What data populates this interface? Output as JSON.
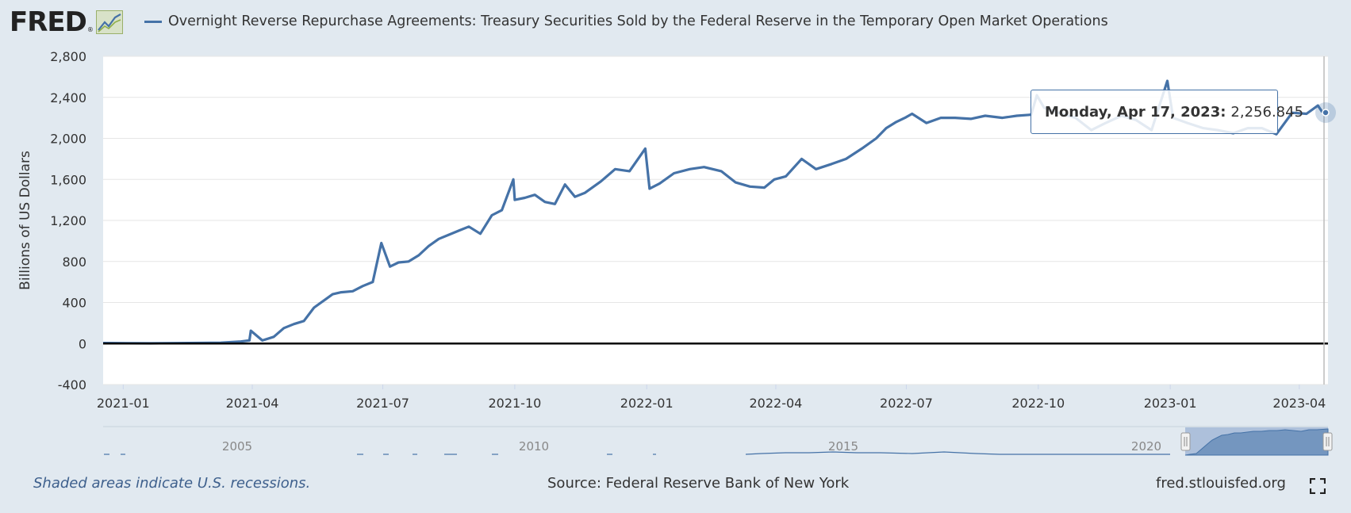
{
  "header": {
    "logo_text": "FRED",
    "logo_reg": "®",
    "logo_icon": "chart-line-icon",
    "title": "Overnight Reverse Repurchase Agreements: Treasury Securities Sold by the Federal Reserve in the Temporary Open Market Operations"
  },
  "tooltip": {
    "date": "Monday, Apr 17, 2023:",
    "value": "2,256.845"
  },
  "navigator": {
    "year_labels": [
      "2005",
      "2010",
      "2015",
      "2020"
    ]
  },
  "footer": {
    "recession_note": "Shaded areas indicate U.S. recessions.",
    "source": "Source: Federal Reserve Bank of New York",
    "url": "fred.stlouisfed.org",
    "fullscreen_icon": "fullscreen-icon"
  },
  "colors": {
    "series": "#4572a7",
    "background": "#e1e9f0",
    "plot_background": "#ffffff",
    "zero_line": "#000000"
  },
  "chart_data": {
    "type": "line",
    "title": "Overnight Reverse Repurchase Agreements: Treasury Securities Sold by the Federal Reserve in the Temporary Open Market Operations",
    "xlabel": "",
    "ylabel": "Billions of US Dollars",
    "ylim": [
      -400,
      2800
    ],
    "yticks": [
      -400,
      0,
      400,
      800,
      1200,
      1600,
      2000,
      2400,
      2800
    ],
    "ytick_labels": [
      "-400",
      "0",
      "400",
      "800",
      "1,200",
      "1,600",
      "2,000",
      "2,400",
      "2,800"
    ],
    "xlim": [
      "2020-12-18",
      "2023-04-21"
    ],
    "xticks": [
      "2021-01-01",
      "2021-04-01",
      "2021-07-01",
      "2021-10-01",
      "2022-01-01",
      "2022-04-01",
      "2022-07-01",
      "2022-10-01",
      "2023-01-01",
      "2023-04-01"
    ],
    "xtick_labels": [
      "2021-01",
      "2021-04",
      "2021-07",
      "2021-10",
      "2022-01",
      "2022-04",
      "2022-07",
      "2022-10",
      "2023-01",
      "2023-04"
    ],
    "grid": true,
    "series": [
      {
        "name": "Overnight Reverse Repurchase Agreements: Treasury Securities Sold by the Federal Reserve in the Temporary Open Market Operations",
        "x": [
          "2020-12-18",
          "2021-01-04",
          "2021-01-20",
          "2021-02-08",
          "2021-02-24",
          "2021-03-10",
          "2021-03-24",
          "2021-03-30",
          "2021-03-31",
          "2021-04-08",
          "2021-04-16",
          "2021-04-23",
          "2021-04-30",
          "2021-05-07",
          "2021-05-14",
          "2021-05-21",
          "2021-05-27",
          "2021-06-02",
          "2021-06-10",
          "2021-06-17",
          "2021-06-24",
          "2021-06-30",
          "2021-07-06",
          "2021-07-12",
          "2021-07-19",
          "2021-07-26",
          "2021-08-02",
          "2021-08-09",
          "2021-08-16",
          "2021-08-23",
          "2021-08-30",
          "2021-09-07",
          "2021-09-15",
          "2021-09-22",
          "2021-09-30",
          "2021-10-01",
          "2021-10-08",
          "2021-10-15",
          "2021-10-22",
          "2021-10-29",
          "2021-11-05",
          "2021-11-12",
          "2021-11-19",
          "2021-11-30",
          "2021-12-10",
          "2021-12-20",
          "2021-12-31",
          "2022-01-03",
          "2022-01-10",
          "2022-01-20",
          "2022-01-31",
          "2022-02-10",
          "2022-02-22",
          "2022-03-04",
          "2022-03-14",
          "2022-03-24",
          "2022-03-31",
          "2022-04-08",
          "2022-04-19",
          "2022-04-29",
          "2022-05-10",
          "2022-05-20",
          "2022-05-31",
          "2022-06-10",
          "2022-06-17",
          "2022-06-24",
          "2022-06-30",
          "2022-07-05",
          "2022-07-15",
          "2022-07-25",
          "2022-08-04",
          "2022-08-15",
          "2022-08-25",
          "2022-09-06",
          "2022-09-16",
          "2022-09-26",
          "2022-09-30",
          "2022-10-05",
          "2022-10-17",
          "2022-10-27",
          "2022-11-07",
          "2022-11-17",
          "2022-11-28",
          "2022-12-08",
          "2022-12-19",
          "2022-12-30",
          "2023-01-03",
          "2023-01-13",
          "2023-01-24",
          "2023-02-03",
          "2023-02-14",
          "2023-02-24",
          "2023-03-06",
          "2023-03-16",
          "2023-03-27",
          "2023-04-06",
          "2023-04-14",
          "2023-04-17"
        ],
        "values": [
          5,
          3,
          2,
          4,
          6,
          8,
          20,
          30,
          125,
          30,
          65,
          150,
          190,
          220,
          350,
          420,
          480,
          500,
          510,
          560,
          600,
          980,
          750,
          790,
          800,
          860,
          950,
          1020,
          1060,
          1100,
          1140,
          1070,
          1250,
          1300,
          1600,
          1400,
          1420,
          1450,
          1380,
          1360,
          1550,
          1430,
          1470,
          1580,
          1700,
          1680,
          1900,
          1510,
          1560,
          1660,
          1700,
          1720,
          1680,
          1570,
          1530,
          1520,
          1600,
          1630,
          1800,
          1700,
          1750,
          1800,
          1900,
          2000,
          2100,
          2160,
          2200,
          2240,
          2150,
          2200,
          2200,
          2190,
          2220,
          2200,
          2220,
          2230,
          2420,
          2300,
          2240,
          2200,
          2080,
          2150,
          2220,
          2180,
          2080,
          2560,
          2200,
          2150,
          2100,
          2080,
          2050,
          2100,
          2100,
          2040,
          2250,
          2240,
          2320,
          2257
        ]
      }
    ]
  }
}
